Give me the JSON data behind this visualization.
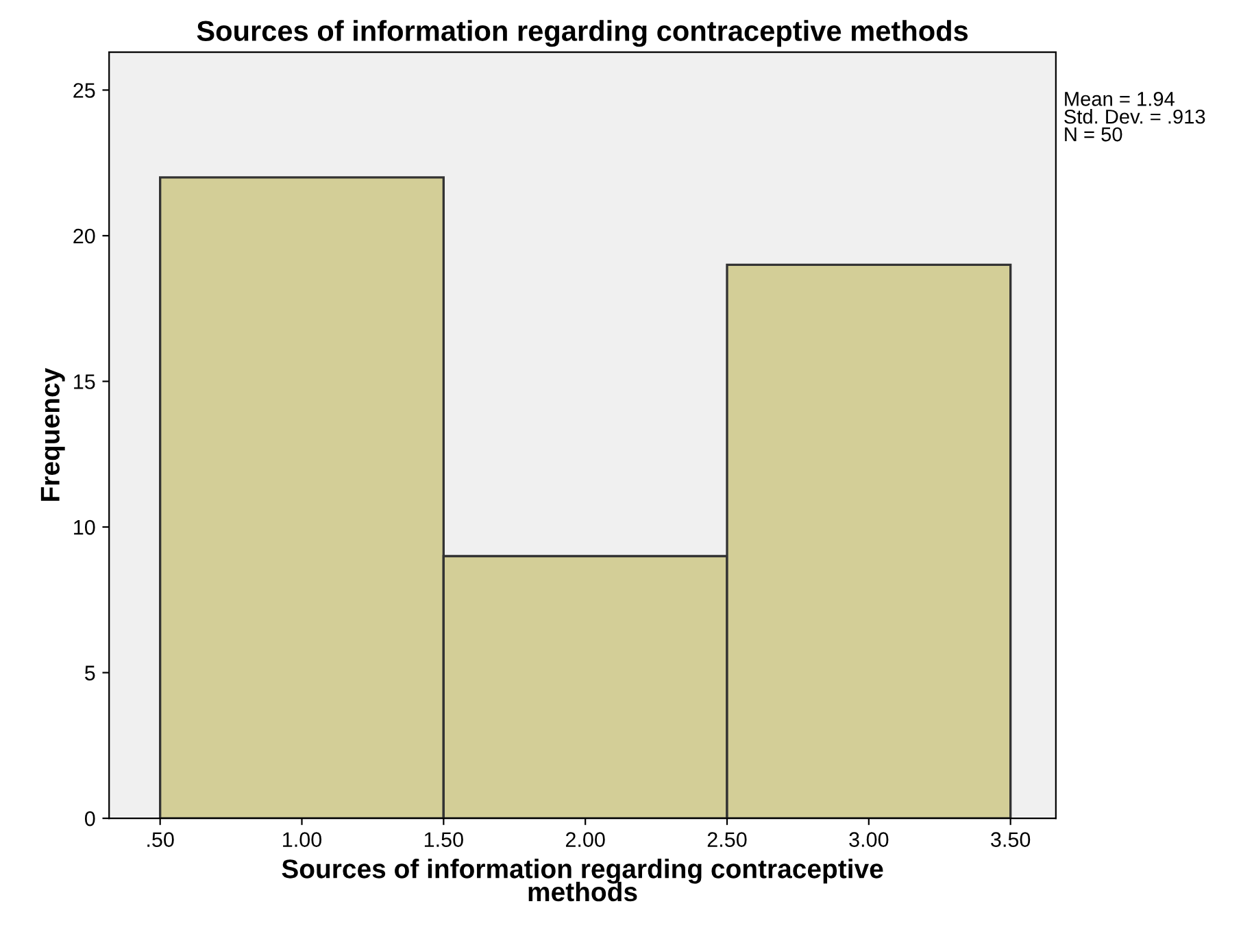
{
  "chart_data": {
    "type": "histogram",
    "title": "Sources of information regarding contraceptive methods",
    "xlabel": "Sources of information regarding contraceptive\nmethods",
    "ylabel": "Frequency",
    "bins": [
      0.5,
      1.5,
      2.5,
      3.5
    ],
    "values": [
      22,
      9,
      19
    ],
    "color": "#d3ce97",
    "xlim": [
      0.32,
      3.66
    ],
    "ylim": [
      0,
      26.3
    ],
    "xticks": [
      {
        "value": 0.5,
        "label": ".50"
      },
      {
        "value": 1.0,
        "label": "1.00"
      },
      {
        "value": 1.5,
        "label": "1.50"
      },
      {
        "value": 2.0,
        "label": "2.00"
      },
      {
        "value": 2.5,
        "label": "2.50"
      },
      {
        "value": 3.0,
        "label": "3.00"
      },
      {
        "value": 3.5,
        "label": "3.50"
      }
    ],
    "yticks": [
      0,
      5,
      10,
      15,
      20,
      25
    ],
    "annotations": [
      "Mean = 1.94",
      "Std. Dev. = .913",
      "N = 50"
    ]
  }
}
